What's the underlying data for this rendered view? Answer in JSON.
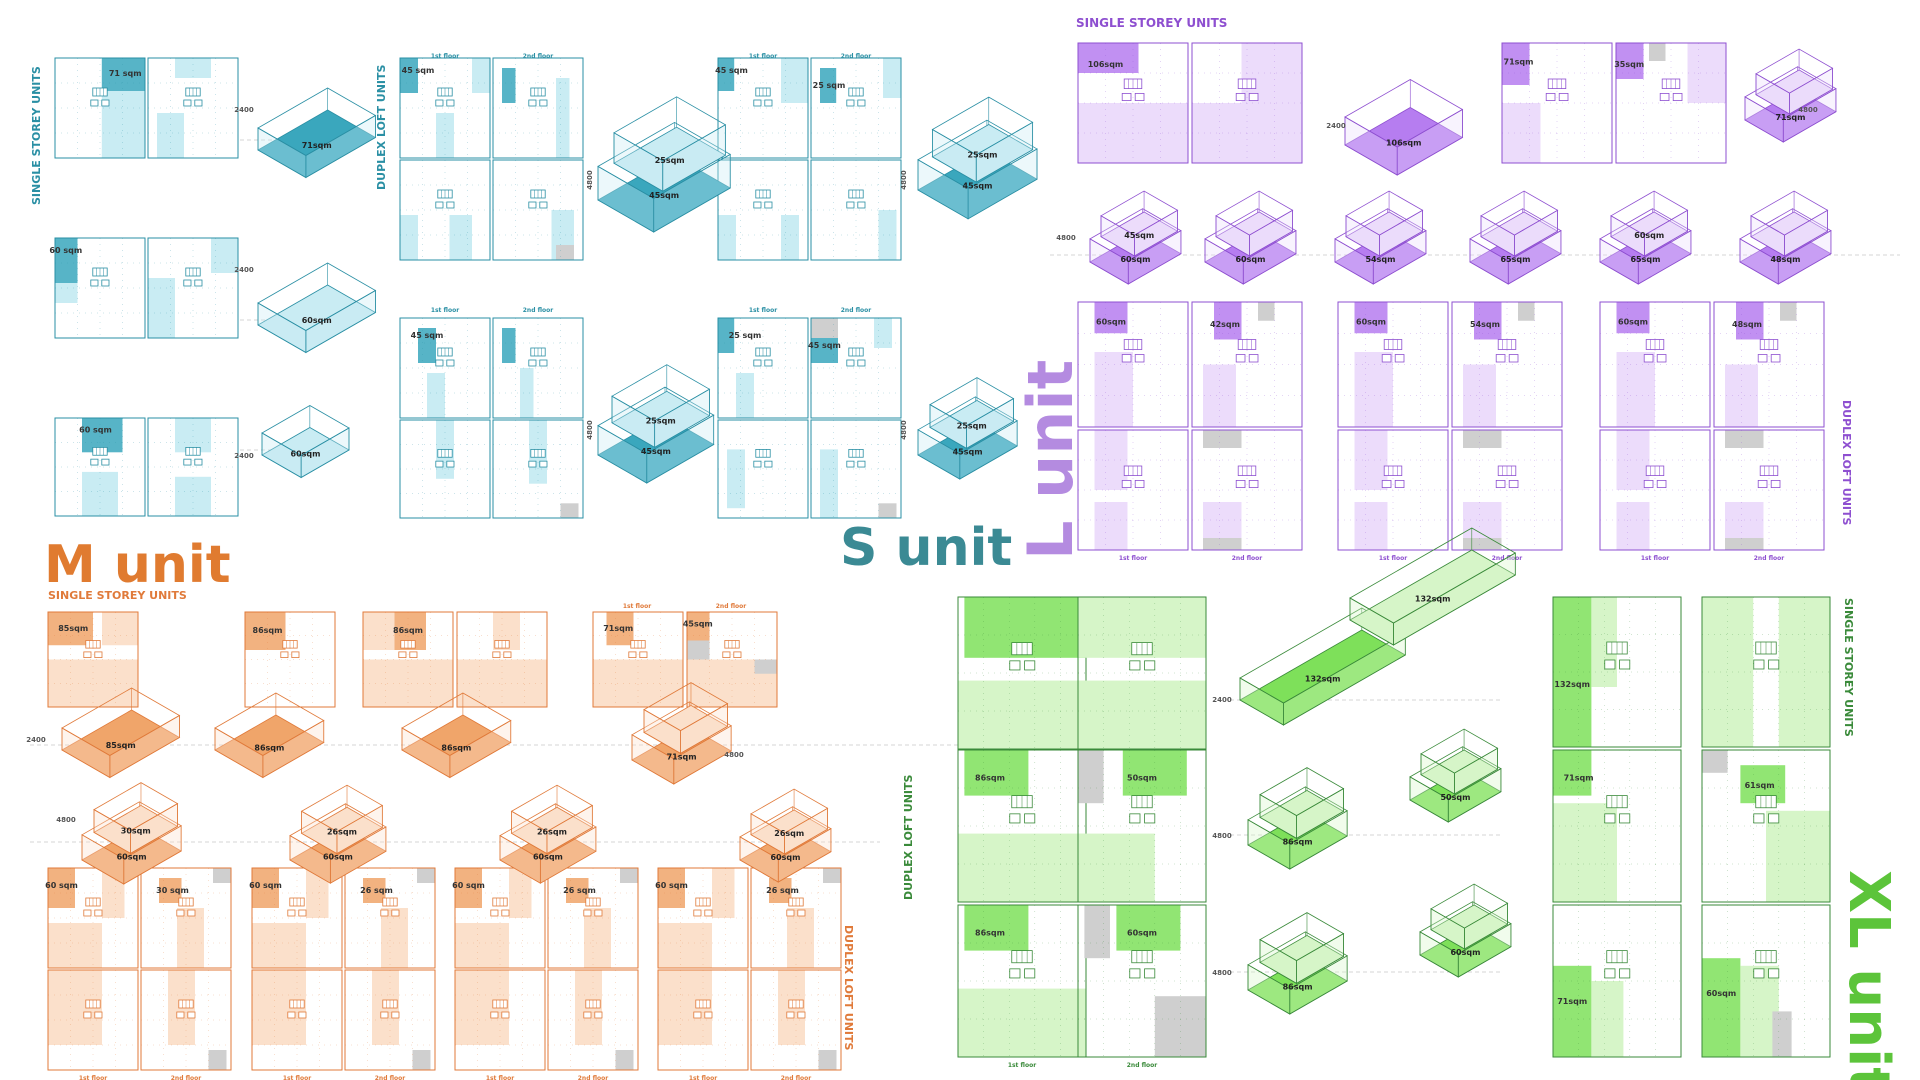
{
  "colors": {
    "s": {
      "line": "#2a8fa4",
      "fill": "#c9ecf3",
      "dark": "#3aa7bd",
      "title": "#3b8a94"
    },
    "l": {
      "line": "#8e4fd0",
      "fill": "#ecdcfb",
      "dark": "#b67df0",
      "title": "#b48be0"
    },
    "m": {
      "line": "#e07a3a",
      "fill": "#fbe0cb",
      "dark": "#f0a56a",
      "title": "#e07b30"
    },
    "xl": {
      "line": "#3a8a3a",
      "fill": "#d6f5c8",
      "dark": "#7ee05a",
      "title": "#5cc43a"
    },
    "grey": "#cfcfcf"
  },
  "titles": {
    "s_unit": "S unit",
    "l_unit": "L unit",
    "m_unit": "M unit",
    "xl_unit": "XL unit"
  },
  "labels": {
    "single_storey": "SINGLE STOREY UNITS",
    "duplex_loft": "DUPLEX LOFT UNITS",
    "first_floor": "1st floor",
    "second_floor": "2nd floor",
    "h2400": "2400",
    "h4800": "4800"
  },
  "areas": {
    "s_single": [
      "71 sqm",
      "60 sqm",
      "60 sqm"
    ],
    "s_single_3d": [
      "71sqm",
      "60sqm",
      "60sqm"
    ],
    "s_duplex_a": [
      "45 sqm",
      "45 sqm",
      "25 sqm"
    ],
    "s_duplex_b": [
      "45 sqm",
      "25 sqm",
      "25 sqm",
      "45 sqm"
    ],
    "s_duplex_3d": [
      "25sqm",
      "45sqm",
      "25sqm",
      "45sqm"
    ],
    "l_single": [
      "106sqm",
      "71sqm",
      "35sqm"
    ],
    "l_single_3d": [
      "106sqm",
      "71sqm"
    ],
    "l_duplex": [
      "60sqm",
      "42sqm",
      "60sqm",
      "54sqm",
      "60sqm",
      "48sqm"
    ],
    "l_duplex_3d": [
      "45sqm",
      "60sqm",
      "54sqm",
      "65sqm",
      "48sqm"
    ],
    "m_single": [
      "85sqm",
      "86sqm",
      "86sqm",
      "71sqm",
      "45sqm"
    ],
    "m_single_3d": [
      "85sqm",
      "86sqm",
      "86sqm",
      "71sqm"
    ],
    "m_duplex": [
      "60 sqm",
      "30 sqm",
      "60 sqm",
      "26 sqm",
      "60 sqm",
      "26 sqm",
      "60 sqm",
      "26 sqm"
    ],
    "m_duplex_3d": [
      "30sqm",
      "60sqm",
      "26sqm",
      "26sqm"
    ],
    "xl_duplex": [
      "86sqm",
      "50sqm",
      "86sqm",
      "60sqm"
    ],
    "xl_single": [
      "132sqm",
      "71sqm",
      "61sqm",
      "71sqm",
      "60sqm"
    ],
    "xl_3d": [
      "132sqm",
      "132sqm",
      "86sqm",
      "50sqm",
      "86sqm",
      "60sqm"
    ]
  }
}
